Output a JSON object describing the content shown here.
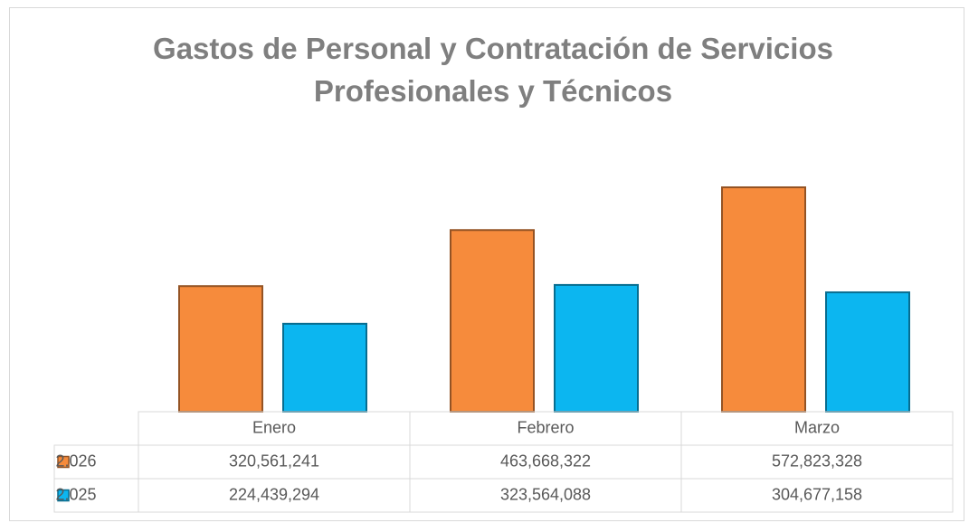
{
  "chart_data": {
    "type": "bar",
    "title": "Gastos de Personal y Contratación de Servicios Profesionales y Técnicos",
    "categories": [
      "Enero",
      "Febrero",
      "Marzo"
    ],
    "series": [
      {
        "name": "2.026",
        "color": "#f68b3c",
        "values": [
          320561241,
          463668322,
          572823328
        ],
        "value_labels": [
          "320,561,241",
          "463,668,322",
          "572,823,328"
        ]
      },
      {
        "name": "2.025",
        "color": "#0cb6f0",
        "values": [
          224439294,
          323564088,
          304677158
        ],
        "value_labels": [
          "224,439,294",
          "323,564,088",
          "304,677,158"
        ]
      }
    ]
  }
}
